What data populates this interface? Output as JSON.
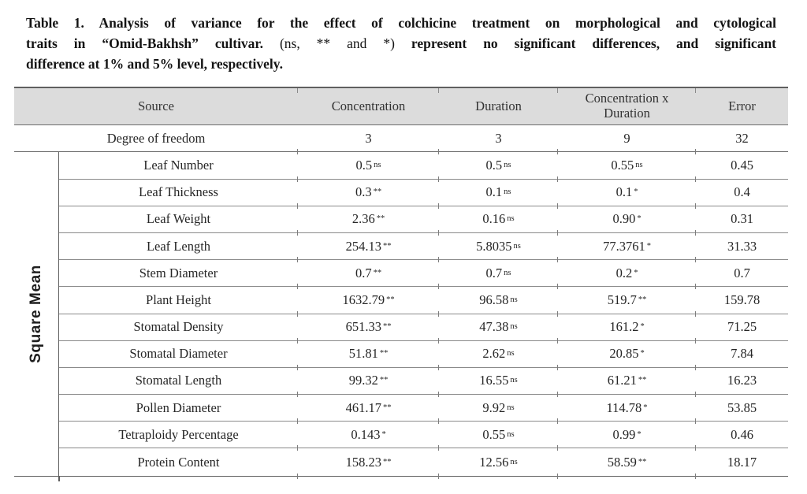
{
  "caption": {
    "line1": "Table 1. Analysis of variance for the effect of colchicine treatment on morphological and cytological",
    "line2_bold_a": "traits in “Omid-Bakhsh” cultivar.",
    "line2_regular": "(ns, ** and *)",
    "line2_bold_b": "represent no significant differences, and significant",
    "line3": "difference at 1% and 5% level, respectively."
  },
  "table": {
    "columns": {
      "source": "Source",
      "concentration": "Concentration",
      "duration": "Duration",
      "interaction": "Concentration x Duration",
      "error": "Error"
    },
    "row_group_label": "Square Mean",
    "df_row": {
      "label": "Degree of freedom",
      "conc": "3",
      "dur": "3",
      "inter": "9",
      "err": "32"
    },
    "rows": [
      {
        "trait": "Leaf Number",
        "conc": {
          "v": "0.5",
          "m": "ns"
        },
        "dur": {
          "v": "0.5",
          "m": "ns"
        },
        "inter": {
          "v": "0.55",
          "m": "ns"
        },
        "err": {
          "v": "0.45"
        }
      },
      {
        "trait": "Leaf Thickness",
        "conc": {
          "v": "0.3",
          "m": "**"
        },
        "dur": {
          "v": "0.1",
          "m": "ns"
        },
        "inter": {
          "v": "0.1",
          "m": "*"
        },
        "err": {
          "v": "0.4"
        }
      },
      {
        "trait": "Leaf Weight",
        "conc": {
          "v": "2.36",
          "m": "**"
        },
        "dur": {
          "v": "0.16",
          "m": "ns"
        },
        "inter": {
          "v": "0.90",
          "m": "*"
        },
        "err": {
          "v": "0.31"
        }
      },
      {
        "trait": "Leaf Length",
        "conc": {
          "v": "254.13",
          "m": "**"
        },
        "dur": {
          "v": "5.8035",
          "m": "ns"
        },
        "inter": {
          "v": "77.3761",
          "m": "*"
        },
        "err": {
          "v": "31.33"
        }
      },
      {
        "trait": "Stem Diameter",
        "conc": {
          "v": "0.7",
          "m": "**"
        },
        "dur": {
          "v": "0.7",
          "m": "ns"
        },
        "inter": {
          "v": "0.2",
          "m": "*"
        },
        "err": {
          "v": "0.7"
        }
      },
      {
        "trait": "Plant Height",
        "conc": {
          "v": "1632.79",
          "m": "**"
        },
        "dur": {
          "v": "96.58",
          "m": "ns"
        },
        "inter": {
          "v": "519.7",
          "m": "**"
        },
        "err": {
          "v": "159.78"
        }
      },
      {
        "trait": "Stomatal Density",
        "conc": {
          "v": "651.33",
          "m": "**"
        },
        "dur": {
          "v": "47.38",
          "m": "ns"
        },
        "inter": {
          "v": "161.2",
          "m": "*"
        },
        "err": {
          "v": "71.25"
        }
      },
      {
        "trait": "Stomatal Diameter",
        "conc": {
          "v": "51.81",
          "m": "**"
        },
        "dur": {
          "v": "2.62",
          "m": "ns"
        },
        "inter": {
          "v": "20.85",
          "m": "*"
        },
        "err": {
          "v": "7.84"
        }
      },
      {
        "trait": "Stomatal Length",
        "conc": {
          "v": "99.32",
          "m": "**"
        },
        "dur": {
          "v": "16.55",
          "m": "ns"
        },
        "inter": {
          "v": "61.21",
          "m": "**"
        },
        "err": {
          "v": "16.23"
        }
      },
      {
        "trait": "Pollen Diameter",
        "conc": {
          "v": "461.17",
          "m": "**"
        },
        "dur": {
          "v": "9.92",
          "m": "ns"
        },
        "inter": {
          "v": "114.78",
          "m": "*"
        },
        "err": {
          "v": "53.85"
        }
      },
      {
        "trait": "Tetraploidy Percentage",
        "conc": {
          "v": "0.143",
          "m": "*"
        },
        "dur": {
          "v": "0.55",
          "m": "ns"
        },
        "inter": {
          "v": "0.99",
          "m": "*"
        },
        "err": {
          "v": "0.46"
        }
      },
      {
        "trait": "Protein Content",
        "conc": {
          "v": "158.23",
          "m": "**"
        },
        "dur": {
          "v": "12.56",
          "m": "ns"
        },
        "inter": {
          "v": "58.59",
          "m": "**"
        },
        "err": {
          "v": "18.17"
        }
      }
    ]
  },
  "colors": {
    "header_background": "#dcdcdc",
    "border_dark": "#5f5f5f",
    "border_light": "#8a8a8a",
    "text": "#262626"
  }
}
